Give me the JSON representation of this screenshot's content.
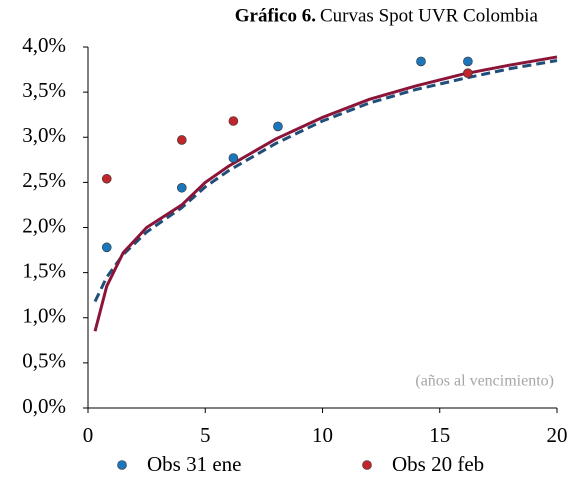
{
  "chart_data": {
    "type": "scatter",
    "title": {
      "number": "Gráfico 6.",
      "text": "Curvas Spot UVR Colombia"
    },
    "annotation": "(años al vencimiento)",
    "xlim": [
      0,
      20
    ],
    "xticks": [
      0,
      5,
      10,
      15,
      20
    ],
    "ylim": [
      0,
      4
    ],
    "yticks": [
      {
        "value": 0,
        "label": "0,0%"
      },
      {
        "value": 0.5,
        "label": "0,5%"
      },
      {
        "value": 1,
        "label": "1,0%"
      },
      {
        "value": 1.5,
        "label": "1,5%"
      },
      {
        "value": 2,
        "label": "2,0%"
      },
      {
        "value": 2.5,
        "label": "2,5%"
      },
      {
        "value": 3,
        "label": "3,0%"
      },
      {
        "value": 3.5,
        "label": "3,5%"
      },
      {
        "value": 4,
        "label": "4,0%"
      }
    ],
    "legend": "bottom",
    "series": [
      {
        "mode": "line",
        "dash": true,
        "color": "#1f4e79",
        "x": [
          0.3,
          0.8,
          1.5,
          2.5,
          4,
          5,
          6,
          8,
          10,
          12,
          14,
          16,
          18,
          20
        ],
        "values": [
          1.18,
          1.45,
          1.7,
          1.95,
          2.22,
          2.45,
          2.63,
          2.93,
          3.18,
          3.38,
          3.53,
          3.65,
          3.76,
          3.85
        ]
      },
      {
        "mode": "line",
        "dash": false,
        "color": "#8b1538",
        "x": [
          0.3,
          0.8,
          1.5,
          2.5,
          4,
          5,
          6,
          8,
          10,
          12,
          14,
          16,
          18,
          20
        ],
        "values": [
          0.85,
          1.35,
          1.72,
          2.0,
          2.25,
          2.5,
          2.68,
          2.98,
          3.22,
          3.42,
          3.57,
          3.7,
          3.8,
          3.89
        ]
      },
      {
        "mode": "points",
        "name": "Obs 31 ene",
        "color": "#1b76bc",
        "x": [
          0.8,
          4.0,
          6.2,
          8.1,
          14.2,
          16.2
        ],
        "values": [
          1.78,
          2.44,
          2.77,
          3.12,
          3.84,
          3.84
        ]
      },
      {
        "mode": "points",
        "name": "Obs 20 feb",
        "color": "#c0272d",
        "x": [
          0.8,
          4.0,
          6.2,
          16.2
        ],
        "values": [
          2.54,
          2.97,
          3.18,
          3.71
        ]
      }
    ]
  }
}
